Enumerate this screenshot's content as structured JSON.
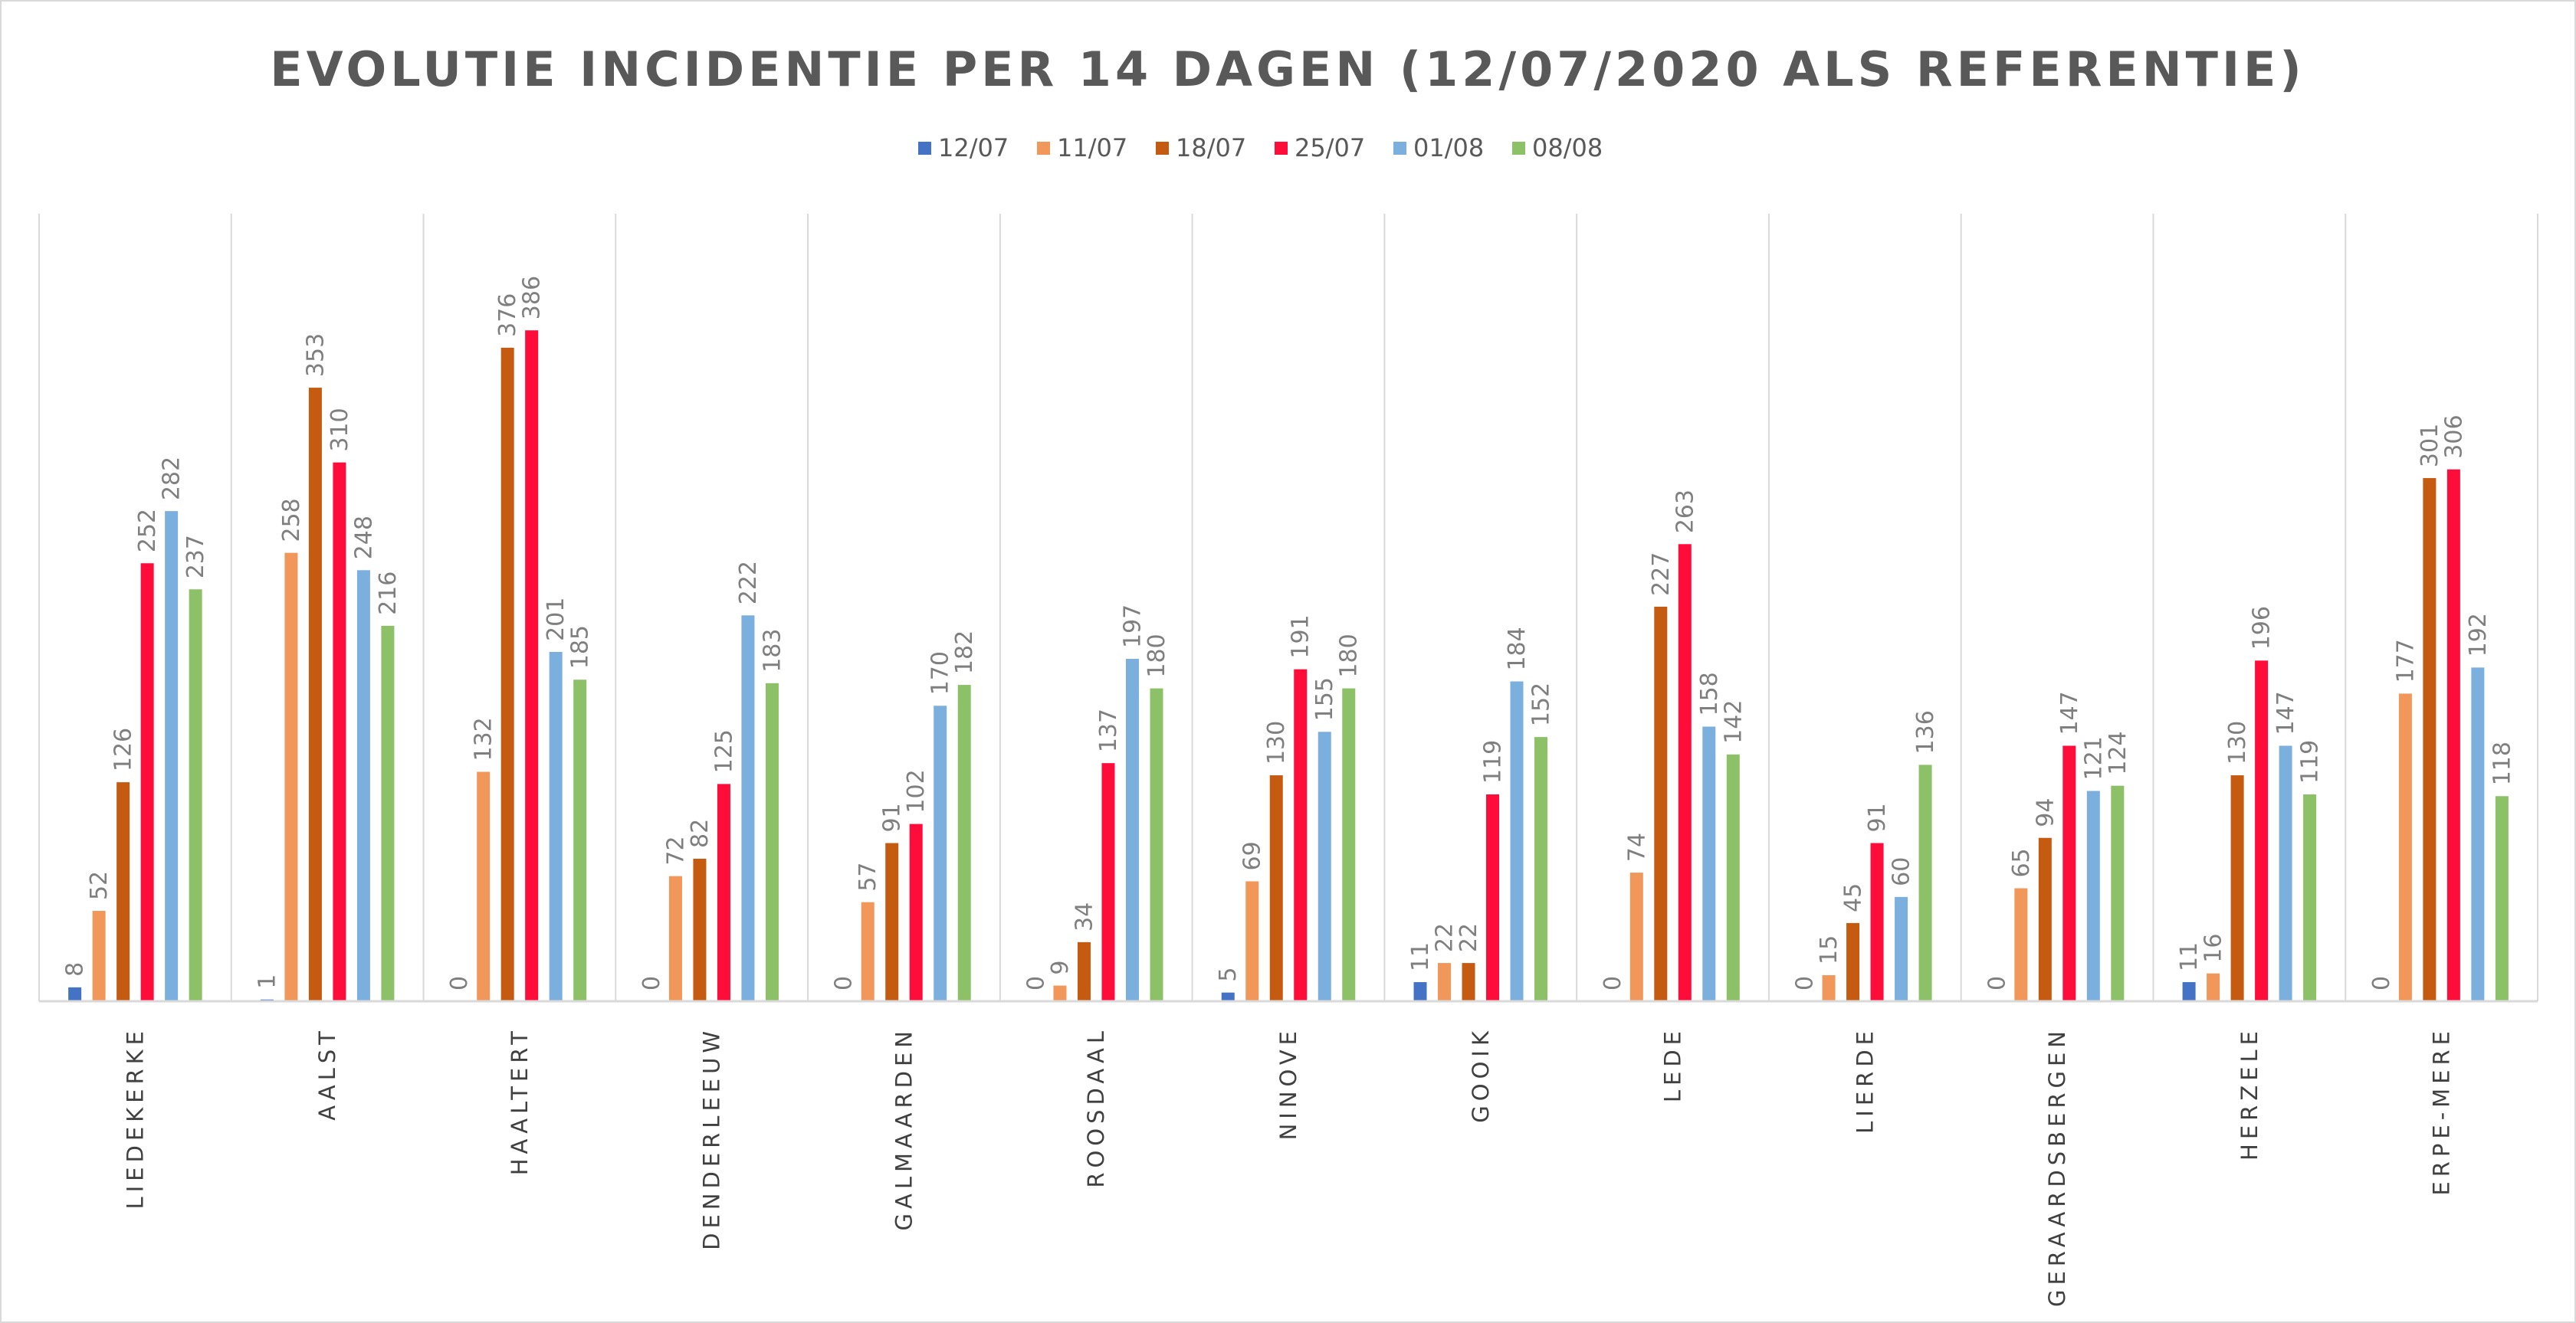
{
  "chart_data": {
    "type": "bar",
    "title": "EVOLUTIE INCIDENTIE PER 14 DAGEN (12/07/2020 ALS REFERENTIE)",
    "xlabel": "",
    "ylabel": "",
    "ylim": [
      0,
      450
    ],
    "grid": "vertical category separators",
    "legend_position": "top",
    "categories": [
      "LIEDEKERKE",
      "AALST",
      "HAALTERT",
      "DENDERLEEUW",
      "GALMAARDEN",
      "ROOSDAAL",
      "NINOVE",
      "GOOIK",
      "LEDE",
      "LIERDE",
      "GERAARDSBERGEN",
      "HERZELE",
      "ERPE-MERE"
    ],
    "series": [
      {
        "name": "12/07",
        "color": "#4472C4",
        "values": [
          8,
          1,
          0,
          0,
          0,
          0,
          5,
          11,
          0,
          0,
          0,
          11,
          0
        ]
      },
      {
        "name": "11/07",
        "color": "#F1975A",
        "values": [
          52,
          258,
          132,
          72,
          57,
          9,
          69,
          22,
          74,
          15,
          65,
          16,
          177
        ]
      },
      {
        "name": "18/07",
        "color": "#C55A11",
        "values": [
          126,
          353,
          376,
          82,
          91,
          34,
          130,
          22,
          227,
          45,
          94,
          130,
          301
        ]
      },
      {
        "name": "25/07",
        "color": "#FF0D3A",
        "values": [
          252,
          310,
          386,
          125,
          102,
          137,
          191,
          119,
          263,
          91,
          147,
          196,
          306
        ]
      },
      {
        "name": "01/08",
        "color": "#7BAFDE",
        "values": [
          282,
          248,
          201,
          222,
          170,
          197,
          155,
          184,
          158,
          60,
          121,
          147,
          192
        ]
      },
      {
        "name": "08/08",
        "color": "#8CC168",
        "values": [
          237,
          216,
          185,
          183,
          182,
          180,
          180,
          152,
          142,
          136,
          124,
          119,
          118
        ]
      }
    ]
  }
}
